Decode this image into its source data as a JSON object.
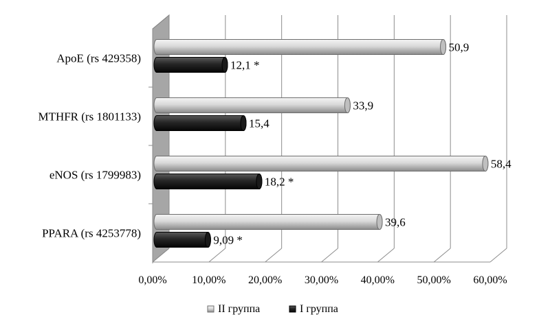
{
  "chart_data": {
    "type": "bar",
    "orientation": "horizontal",
    "style": "3d-cylinder",
    "categories": [
      "ApoE (rs 429358)",
      "MTHFR (rs 1801133)",
      "eNOS (rs 1799983)",
      "PPARA (rs 4253778)"
    ],
    "series": [
      {
        "name": "II группа",
        "values": [
          50.9,
          33.9,
          58.4,
          39.6
        ],
        "labels": [
          "50,9",
          "33,9",
          "58,4",
          "39,6"
        ],
        "color": "#d9d9d9"
      },
      {
        "name": "I группа",
        "values": [
          12.1,
          15.4,
          18.2,
          9.09
        ],
        "labels": [
          "12,1 *",
          "15,4",
          "18,2 *",
          "9,09 *"
        ],
        "color": "#262626"
      }
    ],
    "xlim": [
      0,
      60
    ],
    "x_tick_labels": [
      "0,00%",
      "10,00%",
      "20,00%",
      "30,00%",
      "40,00%",
      "50,00%",
      "60,00%"
    ],
    "grid": true,
    "legend_position": "bottom",
    "wall_color": "#a6a6a6"
  }
}
